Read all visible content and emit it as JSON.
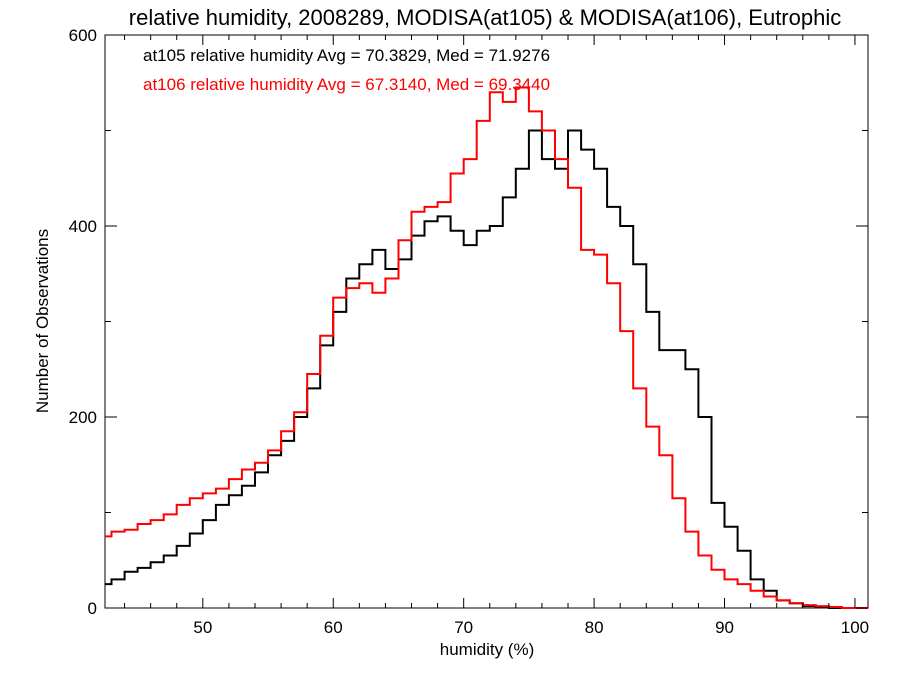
{
  "chart_data": {
    "type": "line",
    "title": "relative humidity, 2008289, MODISA(at105) & MODISA(at106), Eutrophic",
    "xlabel": "humidity (%)",
    "ylabel": "Number of Observations",
    "xlim": [
      42.5,
      101
    ],
    "ylim": [
      0,
      600
    ],
    "x_ticks": [
      50,
      60,
      70,
      80,
      90,
      100
    ],
    "y_ticks": [
      0,
      200,
      400,
      600
    ],
    "grid": false,
    "legend_position": "top-left",
    "series": [
      {
        "name": "at105",
        "color": "#000000",
        "annotation": "at105 relative humidity Avg = 70.3829, Med = 71.9276",
        "points": [
          [
            42.5,
            25
          ],
          [
            43,
            30
          ],
          [
            44,
            38
          ],
          [
            45,
            42
          ],
          [
            46,
            48
          ],
          [
            47,
            55
          ],
          [
            48,
            65
          ],
          [
            49,
            78
          ],
          [
            50,
            92
          ],
          [
            51,
            108
          ],
          [
            52,
            118
          ],
          [
            53,
            128
          ],
          [
            54,
            142
          ],
          [
            55,
            160
          ],
          [
            56,
            175
          ],
          [
            57,
            200
          ],
          [
            58,
            230
          ],
          [
            59,
            275
          ],
          [
            60,
            310
          ],
          [
            61,
            345
          ],
          [
            62,
            360
          ],
          [
            63,
            375
          ],
          [
            64,
            355
          ],
          [
            65,
            365
          ],
          [
            66,
            390
          ],
          [
            67,
            405
          ],
          [
            68,
            410
          ],
          [
            69,
            395
          ],
          [
            70,
            380
          ],
          [
            71,
            395
          ],
          [
            72,
            400
          ],
          [
            73,
            430
          ],
          [
            74,
            460
          ],
          [
            75,
            500
          ],
          [
            76,
            470
          ],
          [
            77,
            460
          ],
          [
            78,
            500
          ],
          [
            79,
            480
          ],
          [
            80,
            460
          ],
          [
            81,
            420
          ],
          [
            82,
            400
          ],
          [
            83,
            360
          ],
          [
            84,
            310
          ],
          [
            85,
            270
          ],
          [
            86,
            270
          ],
          [
            87,
            250
          ],
          [
            88,
            200
          ],
          [
            89,
            110
          ],
          [
            90,
            85
          ],
          [
            91,
            60
          ],
          [
            92,
            30
          ],
          [
            93,
            18
          ],
          [
            94,
            8
          ],
          [
            95,
            5
          ],
          [
            96,
            2
          ],
          [
            97,
            1
          ],
          [
            98,
            0
          ],
          [
            99,
            0
          ],
          [
            100,
            0
          ],
          [
            101,
            0
          ]
        ]
      },
      {
        "name": "at106",
        "color": "#ff0000",
        "annotation": "at106 relative humidity Avg = 67.3140, Med = 69.3440",
        "points": [
          [
            42.5,
            75
          ],
          [
            43,
            80
          ],
          [
            44,
            82
          ],
          [
            45,
            88
          ],
          [
            46,
            92
          ],
          [
            47,
            98
          ],
          [
            48,
            108
          ],
          [
            49,
            115
          ],
          [
            50,
            120
          ],
          [
            51,
            125
          ],
          [
            52,
            135
          ],
          [
            53,
            145
          ],
          [
            54,
            152
          ],
          [
            55,
            165
          ],
          [
            56,
            185
          ],
          [
            57,
            205
          ],
          [
            58,
            245
          ],
          [
            59,
            285
          ],
          [
            60,
            325
          ],
          [
            61,
            335
          ],
          [
            62,
            340
          ],
          [
            63,
            330
          ],
          [
            64,
            345
          ],
          [
            65,
            385
          ],
          [
            66,
            415
          ],
          [
            67,
            420
          ],
          [
            68,
            425
          ],
          [
            69,
            455
          ],
          [
            70,
            470
          ],
          [
            71,
            510
          ],
          [
            72,
            540
          ],
          [
            73,
            530
          ],
          [
            74,
            545
          ],
          [
            75,
            520
          ],
          [
            76,
            500
          ],
          [
            77,
            470
          ],
          [
            78,
            440
          ],
          [
            79,
            375
          ],
          [
            80,
            370
          ],
          [
            81,
            340
          ],
          [
            82,
            290
          ],
          [
            83,
            230
          ],
          [
            84,
            190
          ],
          [
            85,
            160
          ],
          [
            86,
            115
          ],
          [
            87,
            80
          ],
          [
            88,
            55
          ],
          [
            89,
            40
          ],
          [
            90,
            30
          ],
          [
            91,
            25
          ],
          [
            92,
            18
          ],
          [
            93,
            12
          ],
          [
            94,
            8
          ],
          [
            95,
            5
          ],
          [
            96,
            3
          ],
          [
            97,
            2
          ],
          [
            98,
            1
          ],
          [
            99,
            0
          ],
          [
            100,
            0
          ],
          [
            101,
            0
          ]
        ]
      }
    ]
  }
}
